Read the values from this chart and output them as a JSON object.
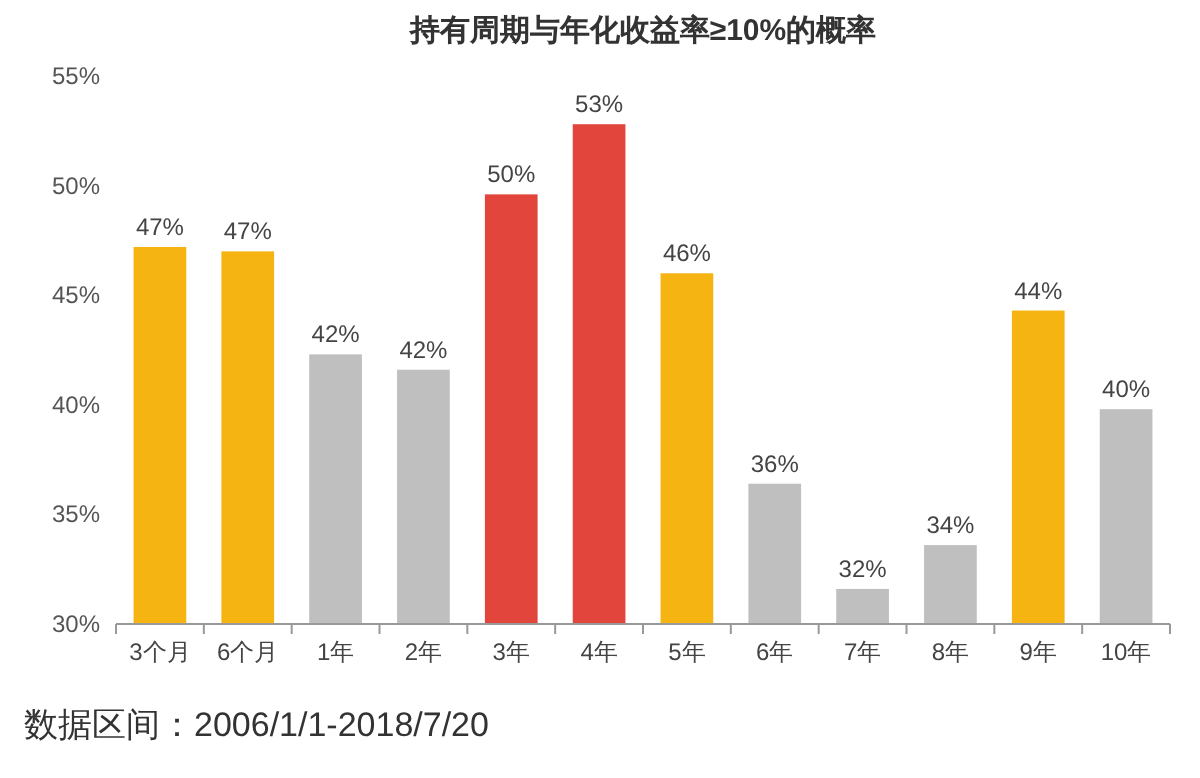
{
  "chart_data": {
    "type": "bar",
    "title": "持有周期与年化收益率≥10%的概率",
    "categories": [
      "3个月",
      "6个月",
      "1年",
      "2年",
      "3年",
      "4年",
      "5年",
      "6年",
      "7年",
      "8年",
      "9年",
      "10年"
    ],
    "values": [
      47.2,
      47.0,
      42.3,
      41.6,
      49.6,
      52.8,
      46.0,
      36.4,
      31.6,
      33.6,
      44.3,
      39.8
    ],
    "colors": [
      "#f5b412",
      "#f5b412",
      "#bfbfbf",
      "#bfbfbf",
      "#e2453c",
      "#e2453c",
      "#f5b412",
      "#bfbfbf",
      "#bfbfbf",
      "#bfbfbf",
      "#f5b412",
      "#bfbfbf"
    ],
    "value_labels": [
      "47%",
      "47%",
      "42%",
      "42%",
      "50%",
      "53%",
      "46%",
      "36%",
      "32%",
      "34%",
      "44%",
      "40%"
    ],
    "ylim": [
      30,
      55
    ],
    "yticks": [
      {
        "value": 30,
        "label": "30%"
      },
      {
        "value": 35,
        "label": "35%"
      },
      {
        "value": 40,
        "label": "40%"
      },
      {
        "value": 45,
        "label": "45%"
      },
      {
        "value": 50,
        "label": "50%"
      },
      {
        "value": 55,
        "label": "55%"
      }
    ],
    "annotations": [
      "数据区间：2006/1/1-2018/7/20"
    ]
  }
}
